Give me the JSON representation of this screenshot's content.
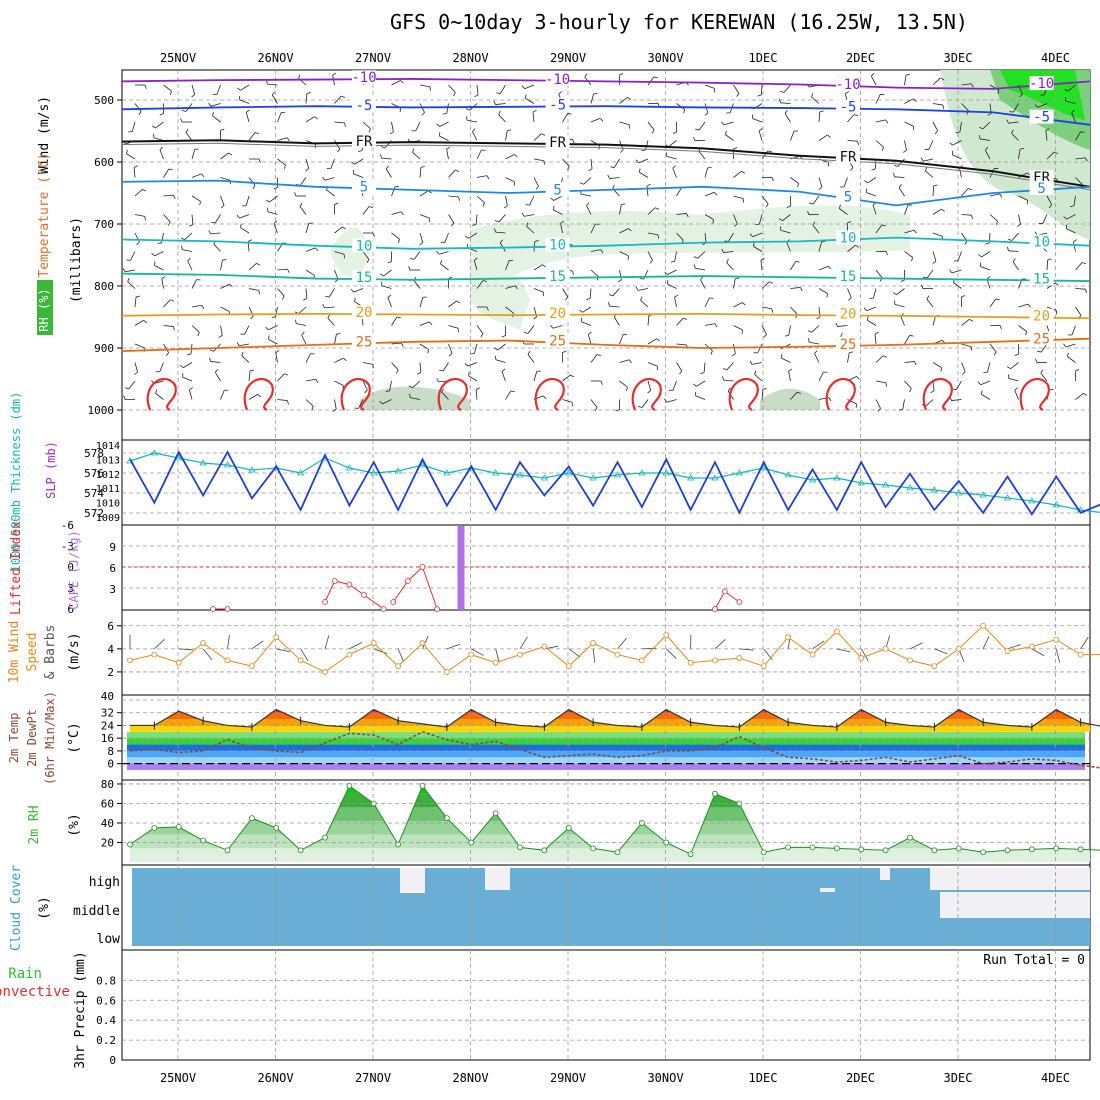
{
  "title": "GFS 0~10day 3-hourly for KEREWAN (16.25W, 13.5N)",
  "dates": [
    "25NOV",
    "26NOV",
    "27NOV",
    "28NOV",
    "29NOV",
    "30NOV",
    "1DEC",
    "2DEC",
    "3DEC",
    "4DEC"
  ],
  "colors": {
    "frame": "#000000",
    "grid": "#999999",
    "blue": "#1f3fd0",
    "cyan": "#19b5b5",
    "orange": "#e08a1e",
    "red": "#e03030",
    "rh_green": "#38b838",
    "cloud_blue": "#6aaed6",
    "cape": "#b070e8",
    "purple": "#9a2bd0"
  },
  "chart_data": [
    {
      "type": "line",
      "panel": "upper-air",
      "ylabel_parts": [
        "RH (%)",
        "Temperature (°C)",
        "Wind (m/s)"
      ],
      "ylabel_sub": "(millibars)",
      "y_ticks": [
        500,
        600,
        700,
        800,
        900,
        1000
      ],
      "ylim": [
        1000,
        450
      ],
      "temperature_contour_labels": [
        "-10",
        "-5",
        "FR",
        "5",
        "10",
        "15",
        "20",
        "25"
      ],
      "temperature_contours": [
        {
          "label": "-10",
          "pressure_levels": [
            470,
            468,
            467,
            466,
            468,
            470,
            472,
            475,
            480,
            482,
            470
          ]
        },
        {
          "label": "-5",
          "pressure_levels": [
            515,
            512,
            510,
            512,
            511,
            510,
            512,
            513,
            515,
            520,
            540
          ]
        },
        {
          "label": "FR",
          "pressure_levels": [
            567,
            565,
            570,
            568,
            570,
            572,
            578,
            590,
            598,
            615,
            640
          ]
        },
        {
          "label": "5",
          "pressure_levels": [
            632,
            630,
            640,
            645,
            650,
            645,
            640,
            648,
            670,
            650,
            640
          ]
        },
        {
          "label": "10",
          "pressure_levels": [
            725,
            728,
            735,
            740,
            738,
            735,
            730,
            728,
            722,
            728,
            735
          ]
        },
        {
          "label": "15",
          "pressure_levels": [
            780,
            782,
            788,
            790,
            788,
            786,
            784,
            786,
            788,
            790,
            792
          ]
        },
        {
          "label": "20",
          "pressure_levels": [
            848,
            846,
            845,
            846,
            847,
            846,
            845,
            847,
            848,
            850,
            852
          ]
        },
        {
          "label": "25",
          "pressure_levels": [
            905,
            900,
            895,
            890,
            888,
            895,
            900,
            898,
            895,
            890,
            885
          ]
        }
      ]
    },
    {
      "type": "line",
      "panel": "thickness-slp",
      "ylabel_left": "1000-500mb Thickness (dm)",
      "ylabel_right": "SLP (mb)",
      "left_ticks": [
        572,
        574,
        576,
        578
      ],
      "right_ticks": [
        1009,
        1010,
        1011,
        1012,
        1013,
        1014
      ],
      "x_days": [
        0.0,
        0.25,
        0.5,
        0.75,
        1.0,
        1.25,
        1.5,
        1.75,
        2.0,
        2.25,
        2.5,
        2.75,
        3.0,
        3.25,
        3.5,
        3.75,
        4.0,
        4.25,
        4.5,
        4.75,
        5.0,
        5.25,
        5.5,
        5.75,
        6.0,
        6.25,
        6.5,
        6.75,
        7.0,
        7.25,
        7.5,
        7.75,
        8.0,
        8.25,
        8.5,
        8.75,
        9.0,
        9.25,
        9.5,
        9.75,
        10.0
      ],
      "slp": [
        1013.0,
        1010.0,
        1013.5,
        1010.5,
        1013.5,
        1010.3,
        1012.5,
        1009.5,
        1013.3,
        1009.8,
        1012.8,
        1009.5,
        1013.0,
        1009.8,
        1012.5,
        1009.5,
        1012.8,
        1010.5,
        1012.5,
        1009.8,
        1012.8,
        1009.7,
        1013.0,
        1009.5,
        1012.8,
        1009.3,
        1012.8,
        1009.5,
        1012.3,
        1009.5,
        1012.8,
        1009.7,
        1012.0,
        1009.5,
        1011.5,
        1009.3,
        1011.8,
        1009.2,
        1011.8,
        1009.3,
        1010.0
      ],
      "thickness": [
        577.2,
        578.0,
        577.5,
        577.0,
        576.8,
        576.3,
        576.5,
        576.0,
        577.5,
        576.5,
        576.0,
        576.2,
        576.8,
        576.0,
        576.5,
        576.0,
        575.8,
        575.5,
        576.0,
        575.5,
        575.8,
        576.0,
        576.0,
        575.5,
        575.5,
        576.0,
        576.5,
        575.8,
        575.3,
        575.5,
        575.0,
        574.8,
        574.5,
        574.3,
        574.0,
        573.8,
        573.5,
        573.2,
        572.8,
        572.3,
        572.0
      ]
    },
    {
      "type": "line",
      "panel": "cape-li",
      "ylabel_left": "Lifted Index",
      "ylabel_right": "CAPE (J/kg)",
      "left_ticks": [
        "-6",
        "-3",
        "0",
        "3",
        "6"
      ],
      "right_ticks": [
        3,
        6,
        9
      ],
      "cape_bar": {
        "x_day": 3.0,
        "value": 12
      },
      "lifted_index_segments": [
        {
          "x": [
            0.85,
            1.0
          ],
          "y": [
            6,
            6
          ]
        },
        {
          "x": [
            2.0,
            2.1,
            2.25,
            2.4,
            2.6
          ],
          "y": [
            5,
            2,
            2.5,
            4,
            6
          ]
        },
        {
          "x": [
            2.7,
            2.85,
            3.0,
            3.15
          ],
          "y": [
            5,
            2,
            0,
            6
          ]
        },
        {
          "x": [
            6.0,
            6.1,
            6.25
          ],
          "y": [
            6,
            3.5,
            5
          ]
        }
      ]
    },
    {
      "type": "line",
      "panel": "wind10m",
      "ylabel_parts": [
        "10m Wind",
        "Speed",
        "& Barbs"
      ],
      "ylabel_sub": "(m/s)",
      "y_ticks": [
        2,
        4,
        6
      ],
      "ylim": [
        0,
        6.5
      ],
      "x_days": [
        0.0,
        0.25,
        0.5,
        0.75,
        1.0,
        1.25,
        1.5,
        1.75,
        2.0,
        2.25,
        2.5,
        2.75,
        3.0,
        3.25,
        3.5,
        3.75,
        4.0,
        4.25,
        4.5,
        4.75,
        5.0,
        5.25,
        5.5,
        5.75,
        6.0,
        6.25,
        6.5,
        6.75,
        7.0,
        7.25,
        7.5,
        7.75,
        8.0,
        8.25,
        8.5,
        8.75,
        9.0,
        9.25,
        9.5,
        9.75,
        10.0
      ],
      "speed": [
        3.0,
        3.5,
        2.8,
        4.5,
        3.0,
        2.5,
        5.0,
        3.0,
        2.0,
        3.5,
        4.5,
        2.5,
        4.5,
        2.0,
        3.5,
        2.8,
        3.5,
        4.2,
        2.5,
        4.5,
        3.5,
        3.0,
        5.2,
        2.8,
        3.0,
        3.2,
        2.5,
        5.0,
        3.5,
        5.5,
        3.2,
        4.0,
        3.0,
        2.5,
        4.0,
        6.0,
        3.8,
        4.2,
        4.8,
        3.5,
        3.5
      ]
    },
    {
      "type": "area",
      "panel": "temp2m",
      "ylabel_parts": [
        "2m Temp",
        "2m DewPt",
        "(6hr Min/Max)"
      ],
      "ylabel_sub": "(°C)",
      "y_ticks": [
        0,
        8,
        16,
        24,
        32,
        40
      ],
      "ylim": [
        -4,
        40
      ],
      "x_days": [
        0.0,
        0.25,
        0.5,
        0.75,
        1.0,
        1.25,
        1.5,
        1.75,
        2.0,
        2.25,
        2.5,
        2.75,
        3.0,
        3.25,
        3.5,
        3.75,
        4.0,
        4.25,
        4.5,
        4.75,
        5.0,
        5.25,
        5.5,
        5.75,
        6.0,
        6.25,
        6.5,
        6.75,
        7.0,
        7.25,
        7.5,
        7.75,
        8.0,
        8.25,
        8.5,
        8.75,
        9.0,
        9.25,
        9.5,
        9.75,
        10.0
      ],
      "temperature": [
        24,
        24,
        33,
        27,
        24,
        23,
        34,
        27,
        24,
        23,
        34,
        27,
        25,
        23,
        34,
        26,
        24,
        23,
        34,
        26,
        24,
        23,
        34,
        26,
        24,
        23,
        34,
        26,
        24,
        23,
        34,
        26,
        24,
        23,
        34,
        26,
        24,
        23,
        34,
        26,
        23
      ],
      "dewpoint": [
        8,
        9,
        7,
        8,
        15,
        10,
        8,
        7,
        13,
        19,
        18,
        12,
        20,
        15,
        12,
        14,
        9,
        4,
        5,
        6,
        4,
        5,
        8,
        8,
        10,
        17,
        10,
        4,
        3,
        1,
        2,
        4,
        1,
        3,
        5,
        0,
        1,
        3,
        2,
        -1,
        -3
      ]
    },
    {
      "type": "area",
      "panel": "rh2m",
      "ylabel": "2m RH",
      "ylabel_sub": "(%)",
      "y_ticks": [
        20,
        40,
        60,
        80
      ],
      "ylim": [
        0,
        82
      ],
      "x_days": [
        0.0,
        0.25,
        0.5,
        0.75,
        1.0,
        1.25,
        1.5,
        1.75,
        2.0,
        2.25,
        2.5,
        2.75,
        3.0,
        3.25,
        3.5,
        3.75,
        4.0,
        4.25,
        4.5,
        4.75,
        5.0,
        5.25,
        5.5,
        5.75,
        6.0,
        6.25,
        6.5,
        6.75,
        7.0,
        7.25,
        7.5,
        7.75,
        8.0,
        8.25,
        8.5,
        8.75,
        9.0,
        9.25,
        9.5,
        9.75,
        10.0
      ],
      "rh": [
        18,
        35,
        36,
        22,
        12,
        45,
        35,
        12,
        25,
        78,
        60,
        18,
        78,
        45,
        20,
        50,
        15,
        12,
        35,
        14,
        10,
        40,
        20,
        8,
        70,
        60,
        10,
        15,
        15,
        14,
        13,
        12,
        25,
        12,
        14,
        10,
        12,
        13,
        14,
        13,
        12
      ]
    },
    {
      "type": "area",
      "panel": "cloud",
      "ylabel": "Cloud Cover",
      "ylabel_sub": "(%)",
      "levels": [
        "high",
        "middle",
        "low"
      ]
    },
    {
      "type": "bar",
      "panel": "precip",
      "ylabel_parts": [
        "Total / Rain",
        "Convective"
      ],
      "ylabel_sub": "3hr Precip (mm)",
      "y_ticks": [
        "0",
        "0.2",
        "0.4",
        "0.6",
        "0.8"
      ],
      "ylim": [
        0,
        1.0
      ],
      "run_total_label": "Run Total = 0",
      "values": []
    }
  ]
}
